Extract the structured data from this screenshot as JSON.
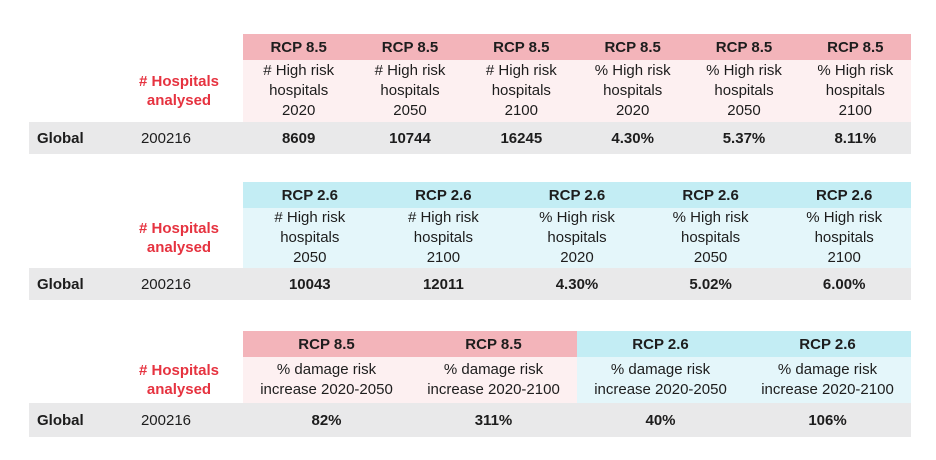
{
  "colors": {
    "rcp85_header": "#f3b4ba",
    "rcp85_subheader": "#fdf0f1",
    "rcp26_header": "#c3edf4",
    "rcp26_subheader": "#e4f6fa",
    "value_row": "#e9e9ea",
    "accent_red": "#e63340",
    "text": "#1d1d1d"
  },
  "tables": [
    {
      "hospitals_label": "# Hospitals\nanalysed",
      "row_label": "Global",
      "hospitals_value": "200216",
      "columns": [
        {
          "scenario": "RCP 8.5",
          "metric": "# High risk\nhospitals\n2020",
          "value": "8609"
        },
        {
          "scenario": "RCP 8.5",
          "metric": "# High risk\nhospitals\n2050",
          "value": "10744"
        },
        {
          "scenario": "RCP 8.5",
          "metric": "# High risk\nhospitals\n2100",
          "value": "16245"
        },
        {
          "scenario": "RCP 8.5",
          "metric": "% High risk\nhospitals\n2020",
          "value": "4.30%"
        },
        {
          "scenario": "RCP 8.5",
          "metric": "% High risk\nhospitals\n2050",
          "value": "5.37%"
        },
        {
          "scenario": "RCP 8.5",
          "metric": "% High risk\nhospitals\n2100",
          "value": "8.11%"
        }
      ]
    },
    {
      "hospitals_label": "# Hospitals\nanalysed",
      "row_label": "Global",
      "hospitals_value": "200216",
      "columns": [
        {
          "scenario": "RCP 2.6",
          "metric": "# High risk\nhospitals\n2050",
          "value": "10043"
        },
        {
          "scenario": "RCP 2.6",
          "metric": "# High risk\nhospitals\n2100",
          "value": "12011"
        },
        {
          "scenario": "RCP 2.6",
          "metric": "% High risk\nhospitals\n2020",
          "value": "4.30%"
        },
        {
          "scenario": "RCP 2.6",
          "metric": "% High risk\nhospitals\n2050",
          "value": "5.02%"
        },
        {
          "scenario": "RCP 2.6",
          "metric": "% High risk\nhospitals\n2100",
          "value": "6.00%"
        }
      ]
    },
    {
      "hospitals_label": "# Hospitals\nanalysed",
      "row_label": "Global",
      "hospitals_value": "200216",
      "columns": [
        {
          "scenario": "RCP 8.5",
          "metric": "% damage risk\nincrease 2020-2050",
          "value": "82%"
        },
        {
          "scenario": "RCP 8.5",
          "metric": "% damage risk\nincrease 2020-2100",
          "value": "311%"
        },
        {
          "scenario": "RCP 2.6",
          "metric": "% damage risk\nincrease 2020-2050",
          "value": "40%"
        },
        {
          "scenario": "RCP 2.6",
          "metric": "% damage risk\nincrease 2020-2100",
          "value": "106%"
        }
      ]
    }
  ],
  "chart_data": [
    {
      "type": "table",
      "scenario_row": [
        "RCP 8.5",
        "RCP 8.5",
        "RCP 8.5",
        "RCP 8.5",
        "RCP 8.5",
        "RCP 8.5"
      ],
      "header_row": [
        "# Hospitals analysed",
        "# High risk hospitals 2020",
        "# High risk hospitals 2050",
        "# High risk hospitals 2100",
        "% High risk hospitals 2020",
        "% High risk hospitals 2050",
        "% High risk hospitals 2100"
      ],
      "rows": [
        [
          "Global",
          200216,
          8609,
          10744,
          16245,
          "4.30%",
          "5.37%",
          "8.11%"
        ]
      ]
    },
    {
      "type": "table",
      "scenario_row": [
        "RCP 2.6",
        "RCP 2.6",
        "RCP 2.6",
        "RCP 2.6",
        "RCP 2.6"
      ],
      "header_row": [
        "# Hospitals analysed",
        "# High risk hospitals 2050",
        "# High risk hospitals 2100",
        "% High risk hospitals 2020",
        "% High risk hospitals 2050",
        "% High risk hospitals 2100"
      ],
      "rows": [
        [
          "Global",
          200216,
          10043,
          12011,
          "4.30%",
          "5.02%",
          "6.00%"
        ]
      ]
    },
    {
      "type": "table",
      "scenario_row": [
        "RCP 8.5",
        "RCP 8.5",
        "RCP 2.6",
        "RCP 2.6"
      ],
      "header_row": [
        "# Hospitals analysed",
        "% damage risk increase 2020-2050",
        "% damage risk increase 2020-2100",
        "% damage risk increase 2020-2050",
        "% damage risk increase 2020-2100"
      ],
      "rows": [
        [
          "Global",
          200216,
          "82%",
          "311%",
          "40%",
          "106%"
        ]
      ]
    }
  ]
}
